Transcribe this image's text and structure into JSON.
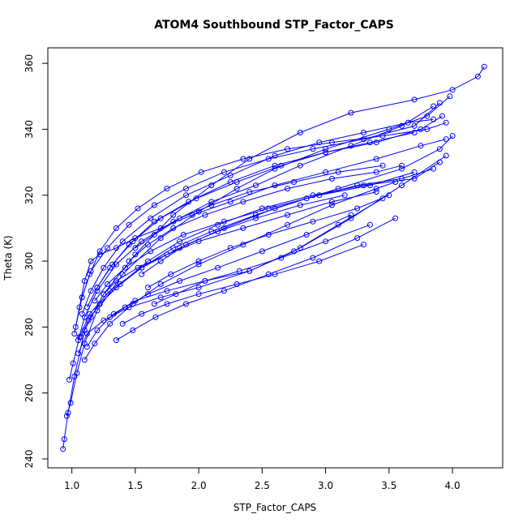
{
  "chart_data": {
    "type": "scatter",
    "title": "ATOM4 Southbound STP_Factor_CAPS",
    "xlabel": "STP_Factor_CAPS",
    "ylabel": "Theta (K)",
    "xlim": [
      0.9,
      4.3
    ],
    "ylim": [
      240,
      362
    ],
    "x_ticks": [
      1.0,
      1.5,
      2.0,
      2.5,
      3.0,
      3.5,
      4.0
    ],
    "x_tick_labels": [
      "1.0",
      "1.5",
      "2.0",
      "2.5",
      "3.0",
      "3.5",
      "4.0"
    ],
    "y_ticks": [
      240,
      260,
      280,
      300,
      320,
      340,
      360
    ],
    "y_tick_labels": [
      "240",
      "260",
      "280",
      "300",
      "320",
      "340",
      "360"
    ],
    "grid": false,
    "legend": "none",
    "marker": "open-circle",
    "connect_points": true,
    "series_color": "#0000ff",
    "series": [
      {
        "x": [
          0.93,
          0.94,
          0.97,
          1.02,
          1.1,
          1.25,
          1.5,
          1.8,
          2.1,
          2.4,
          2.8,
          3.2,
          3.7,
          4.0,
          4.2,
          4.25
        ],
        "y": [
          243,
          246,
          254,
          265,
          279,
          290,
          302,
          314,
          323,
          331,
          339,
          345,
          349,
          352,
          356,
          359
        ]
      },
      {
        "x": [
          0.96,
          0.99,
          1.04,
          1.1,
          1.2,
          1.4,
          1.7,
          2.0,
          2.3,
          2.6,
          3.0,
          3.5,
          3.8,
          3.98
        ],
        "y": [
          253,
          257,
          266,
          275,
          285,
          296,
          307,
          315,
          322,
          328,
          334,
          340,
          344,
          350
        ]
      },
      {
        "x": [
          0.98,
          1.01,
          1.06,
          1.14,
          1.3,
          1.55,
          1.85,
          2.2,
          2.6,
          3.1,
          3.6,
          3.9,
          4.0
        ],
        "y": [
          264,
          269,
          277,
          284,
          291,
          298,
          304,
          310,
          316,
          322,
          328,
          334,
          338
        ]
      },
      {
        "x": [
          1.05,
          1.12,
          1.25,
          1.45,
          1.7,
          2.0,
          2.4,
          2.8,
          3.2,
          3.6,
          3.95
        ],
        "y": [
          272,
          278,
          282,
          286,
          289,
          292,
          297,
          304,
          313,
          323,
          332
        ]
      },
      {
        "x": [
          1.02,
          1.06,
          1.1,
          1.15,
          1.22,
          1.35,
          1.5,
          1.7,
          1.95,
          2.25,
          2.6,
          3.0,
          3.4,
          3.75,
          3.95
        ],
        "y": [
          278,
          286,
          294,
          300,
          302,
          304,
          307,
          310,
          314,
          318,
          323,
          327,
          331,
          335,
          337
        ]
      },
      {
        "x": [
          1.03,
          1.08,
          1.15,
          1.28,
          1.45,
          1.65,
          1.9,
          2.2,
          2.55,
          2.9,
          3.3,
          3.7,
          3.9
        ],
        "y": [
          280,
          289,
          297,
          304,
          311,
          317,
          322,
          327,
          331,
          334,
          337,
          341,
          348
        ]
      },
      {
        "x": [
          1.05,
          1.1,
          1.2,
          1.35,
          1.55,
          1.8,
          2.1,
          2.45,
          2.8,
          3.2,
          3.6,
          3.85
        ],
        "y": [
          276,
          283,
          291,
          299,
          306,
          312,
          318,
          323,
          329,
          335,
          341,
          347
        ]
      },
      {
        "x": [
          1.07,
          1.13,
          1.22,
          1.38,
          1.6,
          1.85,
          2.15,
          2.5,
          2.9,
          3.3,
          3.7,
          3.9
        ],
        "y": [
          277,
          282,
          287,
          293,
          300,
          306,
          311,
          316,
          320,
          323,
          325,
          330
        ]
      },
      {
        "x": [
          1.1,
          1.18,
          1.3,
          1.48,
          1.7,
          2.0,
          2.35,
          2.7,
          3.05,
          3.4,
          3.55
        ],
        "y": [
          270,
          275,
          281,
          287,
          293,
          299,
          305,
          311,
          317,
          322,
          324
        ]
      },
      {
        "x": [
          1.12,
          1.2,
          1.33,
          1.5,
          1.75,
          2.05,
          2.4,
          2.75,
          3.1,
          3.45
        ],
        "y": [
          274,
          279,
          284,
          288,
          291,
          294,
          297,
          303,
          311,
          319
        ]
      },
      {
        "x": [
          1.08,
          1.15,
          1.25,
          1.4,
          1.62,
          1.9,
          2.25,
          2.6,
          2.95,
          3.3,
          3.65,
          3.85
        ],
        "y": [
          284,
          291,
          298,
          306,
          313,
          320,
          326,
          332,
          336,
          339,
          342,
          343
        ]
      },
      {
        "x": [
          1.15,
          1.22,
          1.35,
          1.55,
          1.8,
          2.1,
          2.45,
          2.85,
          3.25,
          3.6,
          3.85
        ],
        "y": [
          283,
          287,
          292,
          298,
          304,
          309,
          314,
          319,
          323,
          325,
          328
        ]
      },
      {
        "x": [
          1.18,
          1.28,
          1.42,
          1.62,
          1.88,
          2.2,
          2.55,
          2.95,
          3.35,
          3.7
        ],
        "y": [
          288,
          293,
          298,
          303,
          308,
          312,
          316,
          320,
          323,
          327
        ]
      },
      {
        "x": [
          1.2,
          1.3,
          1.45,
          1.65,
          1.92,
          2.25,
          2.6,
          3.0,
          3.4,
          3.75,
          3.92
        ],
        "y": [
          292,
          298,
          305,
          312,
          318,
          324,
          329,
          333,
          336,
          340,
          344
        ]
      },
      {
        "x": [
          1.25,
          1.35,
          1.52,
          1.75,
          2.0,
          2.35,
          2.7,
          3.05,
          3.4
        ],
        "y": [
          290,
          294,
          298,
          302,
          306,
          310,
          314,
          318,
          321
        ]
      },
      {
        "x": [
          1.3,
          1.42,
          1.6,
          1.85,
          2.15,
          2.5,
          2.85,
          3.2
        ],
        "y": [
          283,
          286,
          290,
          294,
          298,
          303,
          308,
          314
        ]
      },
      {
        "x": [
          1.35,
          1.48,
          1.66,
          1.9,
          2.2,
          2.55,
          2.9,
          3.25,
          3.55
        ],
        "y": [
          276,
          279,
          283,
          287,
          291,
          296,
          301,
          307,
          313
        ]
      },
      {
        "x": [
          1.4,
          1.55,
          1.75,
          2.0,
          2.3,
          2.6,
          2.95,
          3.3
        ],
        "y": [
          281,
          284,
          287,
          290,
          293,
          296,
          300,
          305
        ]
      },
      {
        "x": [
          1.45,
          1.6,
          1.8,
          2.05,
          2.35,
          2.7,
          3.05,
          3.4,
          3.6
        ],
        "y": [
          300,
          305,
          310,
          314,
          318,
          322,
          325,
          327,
          329
        ]
      },
      {
        "x": [
          1.5,
          1.65,
          1.85,
          2.1,
          2.4,
          2.75,
          3.1,
          3.45
        ],
        "y": [
          304,
          308,
          313,
          317,
          321,
          324,
          327,
          329
        ]
      },
      {
        "x": [
          1.55,
          1.7,
          1.9,
          2.15,
          2.45,
          2.8,
          3.15
        ],
        "y": [
          296,
          300,
          305,
          309,
          313,
          317,
          320
        ]
      },
      {
        "x": [
          1.6,
          1.78,
          2.0,
          2.25,
          2.55,
          2.9,
          3.25,
          3.5
        ],
        "y": [
          292,
          296,
          300,
          304,
          308,
          312,
          316,
          320
        ]
      },
      {
        "x": [
          1.65,
          1.82,
          2.05,
          2.32,
          2.65,
          3.0,
          3.35
        ],
        "y": [
          287,
          290,
          294,
          297,
          301,
          306,
          311
        ]
      },
      {
        "x": [
          1.08,
          1.14,
          1.22,
          1.35,
          1.52,
          1.75,
          2.02,
          2.35,
          2.7,
          3.05,
          3.45,
          3.8,
          3.95
        ],
        "y": [
          289,
          296,
          303,
          310,
          316,
          322,
          327,
          331,
          334,
          336,
          338,
          340,
          342
        ]
      },
      {
        "x": [
          1.12,
          1.2,
          1.32,
          1.48,
          1.7,
          1.98,
          2.3,
          2.65,
          3.0,
          3.35,
          3.7
        ],
        "y": [
          286,
          292,
          299,
          306,
          313,
          319,
          324,
          329,
          333,
          336,
          339
        ]
      }
    ]
  }
}
